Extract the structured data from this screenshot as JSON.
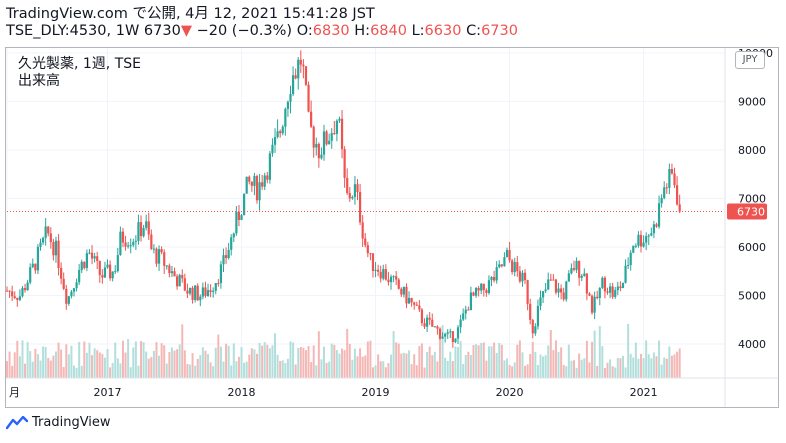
{
  "header": {
    "line1": "TradingView.com で公開, 4月 12, 2021 15:41:28 JST",
    "symbol": "TSE_DLY:4530, 1W",
    "last": "6730",
    "change": "−20 (−0.3%)",
    "o_label": "O:",
    "o_value": "6830",
    "h_label": "H:",
    "h_value": "6840",
    "l_label": "L:",
    "l_value": "6630",
    "c_label": "C:",
    "c_value": "6730"
  },
  "legend": {
    "title": "久光製薬, 1週, TSE",
    "volume": "出来高"
  },
  "currency": "JPY",
  "footer": {
    "brand": "TradingView",
    "logo_icon": "tradingview-logo-icon"
  },
  "colors": {
    "up": "#26a69a",
    "down": "#ef5350",
    "up_volume": "#b2dfdb",
    "down_volume": "#f5b7b5"
  },
  "chart_data": {
    "type": "candlestick",
    "y_ticks": [
      4000,
      5000,
      6000,
      7000,
      8000,
      9000,
      10000
    ],
    "y_range": [
      3300,
      10100
    ],
    "x_ticks": [
      {
        "label": "月",
        "date": 2016.25
      },
      {
        "label": "2017",
        "date": 2017.0
      },
      {
        "label": "2018",
        "date": 2018.0
      },
      {
        "label": "2019",
        "date": 2019.0
      },
      {
        "label": "2020",
        "date": 2020.0
      },
      {
        "label": "2021",
        "date": 2021.0
      }
    ],
    "x_range": [
      2016.25,
      2021.6
    ],
    "last_price": 6730,
    "last_price_label": "6730",
    "series": [
      [
        2016.25,
        5100
      ],
      [
        2016.35,
        5000
      ],
      [
        2016.45,
        5600
      ],
      [
        2016.55,
        6300
      ],
      [
        2016.62,
        5900
      ],
      [
        2016.7,
        4900
      ],
      [
        2016.78,
        5500
      ],
      [
        2016.86,
        5900
      ],
      [
        2016.95,
        5400
      ],
      [
        2017.05,
        5500
      ],
      [
        2017.1,
        6200
      ],
      [
        2017.2,
        6200
      ],
      [
        2017.28,
        6500
      ],
      [
        2017.33,
        5900
      ],
      [
        2017.4,
        5750
      ],
      [
        2017.5,
        5400
      ],
      [
        2017.6,
        5100
      ],
      [
        2017.7,
        5000
      ],
      [
        2017.78,
        5200
      ],
      [
        2017.86,
        5600
      ],
      [
        2017.95,
        6400
      ],
      [
        2018.05,
        7300
      ],
      [
        2018.12,
        7200
      ],
      [
        2018.2,
        7700
      ],
      [
        2018.28,
        8300
      ],
      [
        2018.36,
        9400
      ],
      [
        2018.45,
        9900
      ],
      [
        2018.5,
        8500
      ],
      [
        2018.58,
        8000
      ],
      [
        2018.65,
        8300
      ],
      [
        2018.72,
        8700
      ],
      [
        2018.78,
        7000
      ],
      [
        2018.85,
        7200
      ],
      [
        2018.92,
        6100
      ],
      [
        2018.96,
        5700
      ],
      [
        2019.05,
        5500
      ],
      [
        2019.15,
        5200
      ],
      [
        2019.25,
        4900
      ],
      [
        2019.35,
        4500
      ],
      [
        2019.45,
        4300
      ],
      [
        2019.55,
        4100
      ],
      [
        2019.62,
        4300
      ],
      [
        2019.7,
        4900
      ],
      [
        2019.8,
        5100
      ],
      [
        2019.9,
        5400
      ],
      [
        2019.98,
        5800
      ],
      [
        2020.05,
        5500
      ],
      [
        2020.12,
        5200
      ],
      [
        2020.17,
        4300
      ],
      [
        2020.22,
        4800
      ],
      [
        2020.3,
        5300
      ],
      [
        2020.4,
        5000
      ],
      [
        2020.48,
        5600
      ],
      [
        2020.55,
        5500
      ],
      [
        2020.62,
        4700
      ],
      [
        2020.7,
        5300
      ],
      [
        2020.78,
        5000
      ],
      [
        2020.85,
        5300
      ],
      [
        2020.92,
        6100
      ],
      [
        2021.0,
        6200
      ],
      [
        2021.08,
        6400
      ],
      [
        2021.15,
        7200
      ],
      [
        2021.22,
        7500
      ],
      [
        2021.27,
        6750
      ]
    ]
  }
}
